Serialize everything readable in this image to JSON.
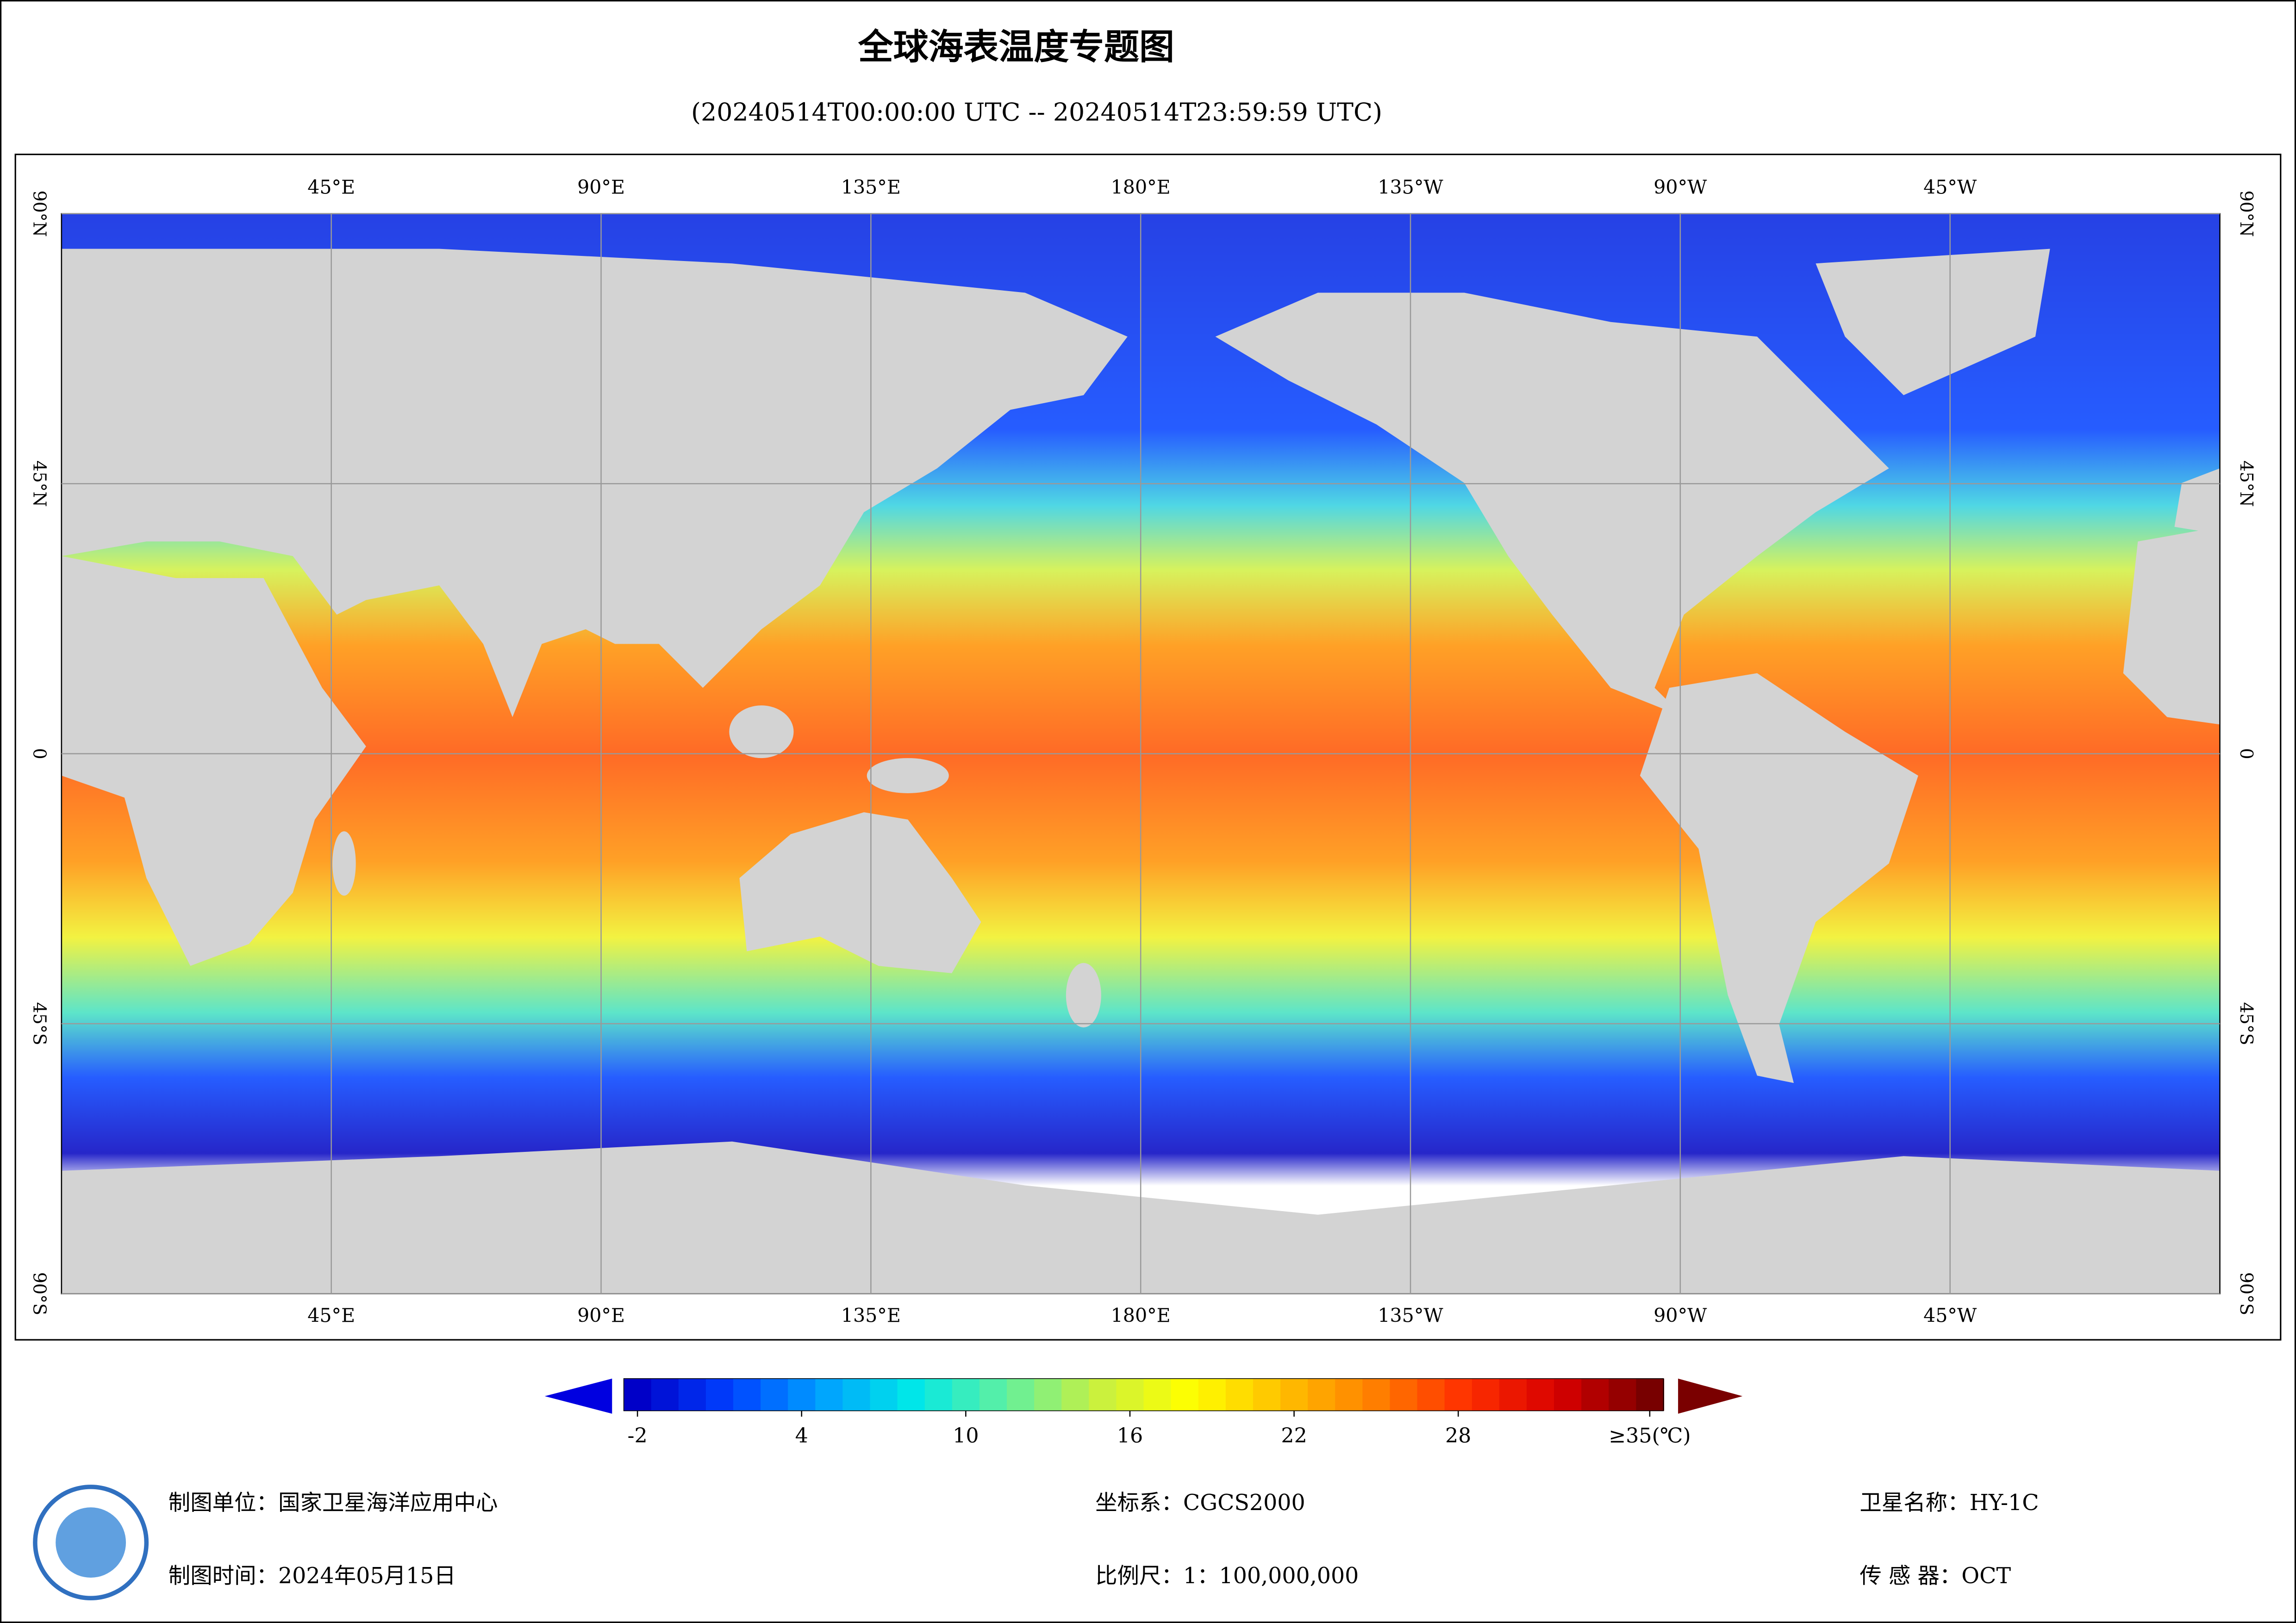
{
  "header": {
    "title": "全球海表温度专题图",
    "subtitle": "(20240514T00:00:00 UTC -- 20240514T23:59:59 UTC)"
  },
  "map": {
    "lonlim": [
      0,
      360
    ],
    "latlim": [
      -90,
      90
    ],
    "lon_ticks": [
      {
        "value": 45,
        "label": "45°E"
      },
      {
        "value": 90,
        "label": "90°E"
      },
      {
        "value": 135,
        "label": "135°E"
      },
      {
        "value": 180,
        "label": "180°E"
      },
      {
        "value": 225,
        "label": "135°W"
      },
      {
        "value": 270,
        "label": "90°W"
      },
      {
        "value": 315,
        "label": "45°W"
      }
    ],
    "lat_ticks": [
      {
        "value": 90,
        "label": "90°N"
      },
      {
        "value": 45,
        "label": "45°N"
      },
      0,
      {
        "value": -45,
        "label": "45°S"
      },
      {
        "value": -90,
        "label": "90°S"
      }
    ],
    "grid": true
  },
  "colorbar": {
    "min": -2,
    "max": 35,
    "colors": [
      "#0000c8",
      "#0040ff",
      "#00a0ff",
      "#00e8e8",
      "#60f0a0",
      "#c8f040",
      "#ffff00",
      "#ffc000",
      "#ff8000",
      "#ff3000",
      "#d80000",
      "#780000"
    ],
    "ticks": [
      -2,
      4,
      10,
      16,
      22,
      28,
      {
        "value": 35,
        "label": "≥35(℃)"
      }
    ]
  },
  "footer": [
    "制图单位：国家卫星海洋应用中心",
    "坐标系：CGCS2000",
    "卫星名称：HY-1C",
    "制图时间：2024年05月15日",
    "比例尺：1：100,000,000",
    "传 感 器：OCT"
  ]
}
